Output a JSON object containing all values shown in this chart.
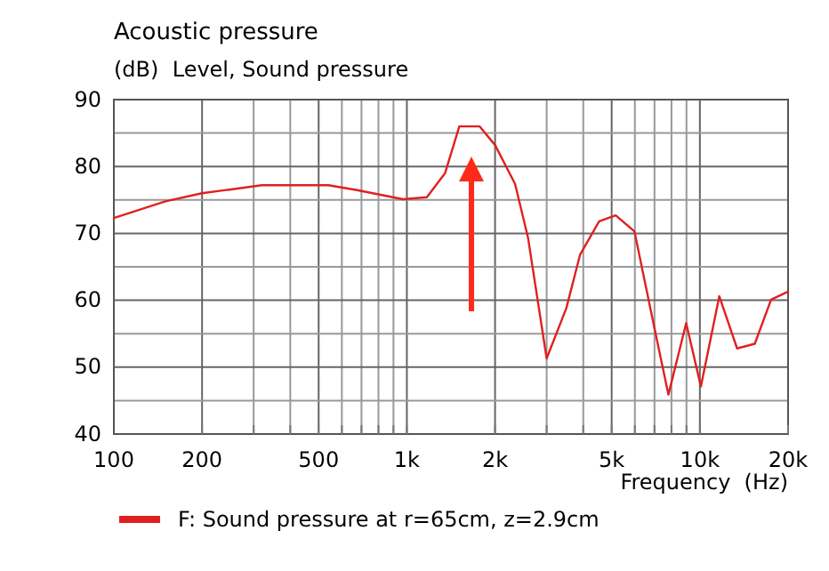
{
  "chart_data": {
    "type": "line",
    "title": "Acoustic pressure",
    "ylabel": "(dB)  Level, Sound pressure",
    "xlabel": "Frequency  (Hz)",
    "log": "x",
    "grid": true,
    "legend": "bottom",
    "line_style": "solid",
    "marker": "none",
    "xlim": [
      100,
      20000
    ],
    "xticks": [
      100,
      {
        "value": 300,
        "label": null
      },
      {
        "value": 400,
        "label": null
      },
      200,
      500,
      {
        "value": 600,
        "label": null
      },
      {
        "value": 700,
        "label": null
      },
      {
        "value": 800,
        "label": null
      },
      {
        "value": 900,
        "label": null
      },
      {
        "value": 1000,
        "label": "1k"
      },
      {
        "value": 2000,
        "label": "2k"
      },
      {
        "value": 3000,
        "label": null
      },
      {
        "value": 4000,
        "label": null
      },
      {
        "value": 5000,
        "label": "5k"
      },
      {
        "value": 6000,
        "label": null
      },
      {
        "value": 7000,
        "label": null
      },
      {
        "value": 8000,
        "label": null
      },
      {
        "value": 9000,
        "label": null
      },
      {
        "value": 10000,
        "label": "10k"
      },
      {
        "value": 20000,
        "label": "20k"
      }
    ],
    "ylim": [
      40,
      90
    ],
    "yticks": [
      40,
      {
        "value": 45,
        "label": null
      },
      50,
      {
        "value": 55,
        "label": null
      },
      60,
      {
        "value": 65,
        "label": null
      },
      70,
      {
        "value": 75,
        "label": null
      },
      80,
      {
        "value": 85,
        "label": null
      },
      90
    ],
    "series": [
      {
        "name": "F: Sound pressure at r=65cm, z=2.9cm",
        "color": "#e02020",
        "x": [
          100,
          150,
          200,
          320,
          540,
          670,
          970,
          1170,
          1350,
          1510,
          1770,
          2000,
          2340,
          2590,
          3000,
          3500,
          3900,
          4530,
          5160,
          5980,
          7040,
          7810,
          8980,
          10080,
          11650,
          13400,
          15400,
          17500,
          20000
        ],
        "values": [
          72.3,
          74.8,
          76,
          77.2,
          77.2,
          76.5,
          75.1,
          75.4,
          79,
          86,
          86,
          83.2,
          77.4,
          69.4,
          51.3,
          58.8,
          66.8,
          71.8,
          72.7,
          70.3,
          55.3,
          45.9,
          56.6,
          47.1,
          60.6,
          52.8,
          53.5,
          60.1,
          61.3
        ]
      }
    ]
  }
}
